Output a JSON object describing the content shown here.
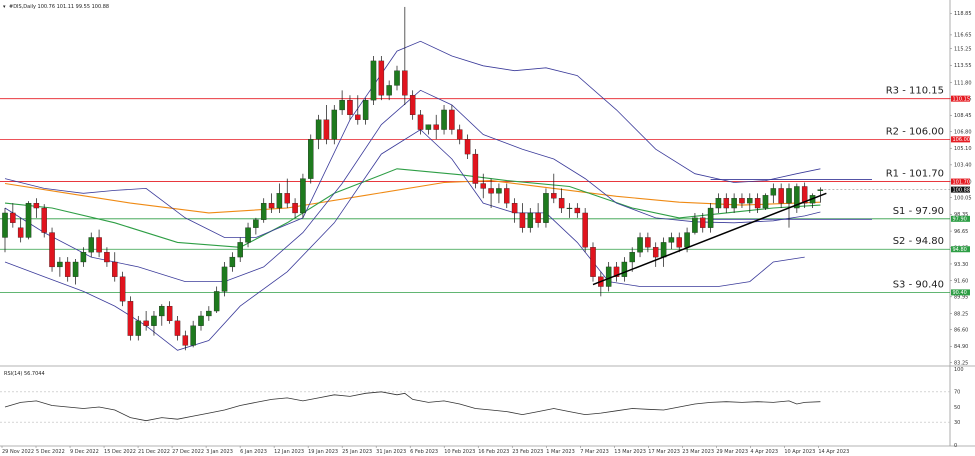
{
  "header": {
    "symbol_line": "#DIS,Daily  100.76 101.11 99.55 100.88",
    "rsi_line": "RSI(14) 56.7044"
  },
  "colors": {
    "bull": "#1e7a1e",
    "bear": "#e0141e",
    "bands": "#3b3b9a",
    "ma_fast": "#2e9e45",
    "ma_slow": "#ef8a14",
    "level": "#e51c23",
    "support_line": "#2e9e45",
    "trend": "#000000",
    "rsi": "#333333"
  },
  "chart_data": {
    "type": "candlestick",
    "price_axis": {
      "range": [
        83.0,
        119.8
      ],
      "ticks": [
        "118.85",
        "116.65",
        "115.25",
        "113.55",
        "111.80",
        "110.15",
        "108.45",
        "106.80",
        "105.10",
        "103.40",
        "101.70",
        "100.05",
        "98.35",
        "96.65",
        "94.95",
        "93.30",
        "91.60",
        "89.95",
        "88.25",
        "86.60",
        "84.90",
        "83.25"
      ]
    },
    "x_axis": {
      "labels": [
        "29 Nov 2022",
        "5 Dec 2022",
        "9 Dec 2022",
        "15 Dec 2022",
        "21 Dec 2022",
        "27 Dec 2022",
        "3 Jan 2023",
        "6 Jan 2023",
        "12 Jan 2023",
        "19 Jan 2023",
        "25 Jan 2023",
        "31 Jan 2023",
        "6 Feb 2023",
        "10 Feb 2023",
        "16 Feb 2023",
        "23 Feb 2023",
        "1 Mar 2023",
        "7 Mar 2023",
        "13 Mar 2023",
        "17 Mar 2023",
        "23 Mar 2023",
        "29 Mar 2023",
        "4 Apr 2023",
        "10 Apr 2023",
        "14 Apr 2023"
      ]
    },
    "levels": [
      {
        "label": "R3 - 110.15",
        "value": 110.15,
        "tag": "110.15"
      },
      {
        "label": "R2 - 106.00",
        "value": 106.0,
        "tag": "106.00"
      },
      {
        "label": "R1 - 101.70",
        "value": 101.7,
        "tag": "101.70"
      },
      {
        "label": "S1 - 97.90",
        "value": 97.9,
        "tag": "97.90"
      },
      {
        "label": "S2 - 94.80",
        "value": 94.8,
        "tag": "94.80"
      },
      {
        "label": "S3 - 90.40",
        "value": 90.4,
        "tag": "90.40"
      }
    ],
    "last_price": {
      "value": 100.88,
      "tag": "100.88"
    },
    "candles": [
      [
        96.0,
        99.0,
        94.5,
        98.5
      ],
      [
        98.5,
        99.5,
        97.0,
        97.5
      ],
      [
        97.0,
        98.0,
        95.5,
        96.0
      ],
      [
        96.0,
        99.7,
        95.8,
        99.5
      ],
      [
        99.5,
        100.0,
        98.0,
        99.0
      ],
      [
        99.0,
        99.4,
        96.0,
        96.5
      ],
      [
        96.5,
        97.0,
        92.5,
        93.0
      ],
      [
        93.0,
        94.0,
        92.0,
        93.5
      ],
      [
        93.5,
        94.0,
        91.5,
        92.0
      ],
      [
        92.0,
        93.8,
        91.2,
        93.5
      ],
      [
        93.5,
        95.0,
        93.0,
        94.5
      ],
      [
        94.5,
        96.5,
        94.0,
        96.0
      ],
      [
        96.0,
        96.8,
        94.0,
        94.5
      ],
      [
        94.5,
        95.0,
        93.0,
        93.5
      ],
      [
        93.5,
        94.5,
        91.5,
        92.0
      ],
      [
        92.0,
        92.5,
        89.0,
        89.5
      ],
      [
        89.5,
        90.0,
        85.5,
        86.0
      ],
      [
        86.0,
        88.0,
        85.5,
        87.5
      ],
      [
        87.5,
        88.5,
        86.5,
        87.0
      ],
      [
        87.0,
        88.5,
        86.0,
        88.0
      ],
      [
        88.0,
        89.2,
        87.0,
        89.0
      ],
      [
        89.0,
        89.5,
        87.2,
        87.5
      ],
      [
        87.5,
        88.0,
        85.5,
        86.0
      ],
      [
        86.0,
        86.5,
        84.5,
        85.0
      ],
      [
        85.0,
        87.5,
        84.8,
        87.0
      ],
      [
        87.0,
        88.5,
        86.5,
        88.0
      ],
      [
        88.0,
        89.0,
        87.5,
        88.5
      ],
      [
        88.5,
        91.0,
        88.3,
        90.5
      ],
      [
        90.5,
        93.5,
        90.0,
        93.0
      ],
      [
        93.0,
        94.5,
        92.5,
        94.0
      ],
      [
        94.0,
        96.0,
        93.5,
        95.5
      ],
      [
        95.5,
        97.5,
        95.0,
        97.0
      ],
      [
        97.0,
        98.0,
        96.3,
        97.8
      ],
      [
        97.8,
        100.0,
        97.5,
        99.5
      ],
      [
        99.5,
        100.5,
        98.5,
        99.0
      ],
      [
        99.0,
        101.5,
        98.5,
        100.5
      ],
      [
        100.5,
        102.0,
        99.0,
        99.5
      ],
      [
        99.5,
        100.0,
        98.0,
        98.5
      ],
      [
        98.5,
        102.5,
        98.0,
        102.0
      ],
      [
        102.0,
        106.5,
        101.5,
        106.0
      ],
      [
        106.0,
        108.5,
        105.0,
        108.0
      ],
      [
        108.0,
        109.5,
        105.5,
        106.0
      ],
      [
        106.0,
        109.5,
        105.5,
        109.0
      ],
      [
        109.0,
        111.0,
        108.5,
        110.0
      ],
      [
        110.0,
        110.5,
        108.0,
        108.5
      ],
      [
        108.5,
        110.5,
        107.5,
        108.0
      ],
      [
        108.0,
        110.2,
        107.5,
        110.0
      ],
      [
        110.0,
        114.5,
        109.5,
        114.0
      ],
      [
        114.0,
        114.5,
        110.0,
        110.5
      ],
      [
        110.5,
        112.0,
        110.0,
        111.5
      ],
      [
        111.5,
        113.5,
        111.0,
        113.0
      ],
      [
        113.0,
        119.5,
        109.5,
        110.5
      ],
      [
        110.5,
        111.0,
        108.0,
        108.5
      ],
      [
        108.5,
        109.0,
        106.5,
        107.0
      ],
      [
        107.0,
        107.5,
        106.5,
        107.5
      ],
      [
        107.5,
        108.5,
        106.0,
        107.0
      ],
      [
        107.0,
        109.5,
        106.5,
        109.0
      ],
      [
        109.0,
        109.5,
        106.5,
        107.0
      ],
      [
        107.0,
        107.5,
        105.5,
        106.0
      ],
      [
        106.0,
        106.5,
        104.0,
        104.5
      ],
      [
        104.5,
        105.0,
        101.0,
        101.5
      ],
      [
        101.5,
        102.5,
        100.0,
        101.0
      ],
      [
        101.0,
        102.0,
        99.0,
        100.5
      ],
      [
        100.5,
        101.5,
        99.5,
        101.0
      ],
      [
        101.0,
        101.5,
        99.0,
        99.5
      ],
      [
        99.5,
        100.0,
        97.5,
        98.5
      ],
      [
        98.5,
        99.5,
        96.5,
        97.0
      ],
      [
        97.0,
        99.0,
        96.5,
        98.5
      ],
      [
        98.5,
        99.5,
        97.0,
        97.5
      ],
      [
        97.5,
        101.0,
        97.0,
        100.5
      ],
      [
        100.5,
        102.5,
        99.5,
        100.0
      ],
      [
        100.0,
        101.0,
        98.5,
        99.0
      ],
      [
        99.0,
        99.5,
        98.0,
        99.0
      ],
      [
        99.0,
        99.5,
        98.0,
        98.5
      ],
      [
        98.5,
        99.0,
        94.5,
        95.0
      ],
      [
        95.0,
        95.5,
        91.5,
        92.0
      ],
      [
        92.0,
        92.5,
        90.0,
        91.0
      ],
      [
        91.0,
        93.5,
        90.5,
        93.0
      ],
      [
        93.0,
        93.5,
        91.5,
        92.0
      ],
      [
        92.0,
        94.0,
        91.5,
        93.5
      ],
      [
        93.5,
        95.0,
        92.5,
        94.5
      ],
      [
        94.5,
        96.5,
        94.0,
        96.0
      ],
      [
        96.0,
        96.5,
        94.5,
        95.0
      ],
      [
        95.0,
        95.5,
        93.0,
        94.0
      ],
      [
        94.0,
        96.0,
        93.0,
        95.5
      ],
      [
        95.5,
        96.5,
        94.8,
        96.0
      ],
      [
        96.0,
        96.5,
        94.5,
        95.0
      ],
      [
        95.0,
        97.0,
        94.5,
        96.5
      ],
      [
        96.5,
        98.5,
        96.3,
        98.0
      ],
      [
        98.0,
        98.5,
        96.5,
        97.0
      ],
      [
        97.0,
        99.5,
        96.5,
        99.0
      ],
      [
        99.0,
        100.5,
        98.5,
        100.0
      ],
      [
        100.0,
        100.5,
        98.5,
        99.0
      ],
      [
        99.0,
        100.5,
        98.5,
        100.0
      ],
      [
        100.0,
        100.5,
        99.0,
        99.5
      ],
      [
        99.5,
        100.5,
        98.5,
        100.0
      ],
      [
        100.0,
        100.5,
        98.5,
        99.0
      ],
      [
        99.0,
        100.5,
        98.8,
        100.3
      ],
      [
        100.3,
        101.5,
        99.5,
        101.0
      ],
      [
        101.0,
        101.5,
        99.0,
        99.5
      ],
      [
        99.5,
        101.5,
        97.0,
        101.0
      ],
      [
        99.0,
        101.5,
        98.5,
        101.2
      ],
      [
        101.2,
        101.6,
        99.0,
        99.5
      ],
      [
        99.5,
        100.5,
        99.0,
        100.3
      ],
      [
        100.76,
        101.11,
        99.55,
        100.88
      ]
    ],
    "moving_averages": [
      {
        "name": "ma_slow",
        "color": "#ef8a14",
        "points": [
          [
            0,
            101.5
          ],
          [
            8,
            100.5
          ],
          [
            16,
            99.5
          ],
          [
            26,
            98.5
          ],
          [
            36,
            99.0
          ],
          [
            46,
            100.3
          ],
          [
            56,
            101.6
          ],
          [
            62,
            101.8
          ],
          [
            70,
            101.0
          ],
          [
            78,
            100.2
          ],
          [
            86,
            99.6
          ],
          [
            94,
            99.3
          ],
          [
            104,
            99.6
          ]
        ]
      },
      {
        "name": "ma_fast",
        "color": "#2e9e45",
        "points": [
          [
            0,
            99.5
          ],
          [
            6,
            99.0
          ],
          [
            14,
            97.5
          ],
          [
            22,
            95.5
          ],
          [
            30,
            95.0
          ],
          [
            36,
            97.5
          ],
          [
            42,
            100.5
          ],
          [
            50,
            103.0
          ],
          [
            58,
            102.4
          ],
          [
            64,
            101.8
          ],
          [
            72,
            101.2
          ],
          [
            80,
            99.0
          ],
          [
            86,
            98.0
          ],
          [
            92,
            98.5
          ],
          [
            98,
            99.0
          ],
          [
            104,
            99.3
          ]
        ]
      },
      {
        "name": "bb_upper",
        "color": "#3b3b9a",
        "points": [
          [
            0,
            102.0
          ],
          [
            5,
            101.0
          ],
          [
            10,
            100.5
          ],
          [
            14,
            100.8
          ],
          [
            18,
            101.0
          ],
          [
            23,
            98.0
          ],
          [
            28,
            96.0
          ],
          [
            32,
            96.0
          ],
          [
            38,
            98.0
          ],
          [
            44,
            108.0
          ],
          [
            50,
            115.0
          ],
          [
            53,
            116.0
          ],
          [
            57,
            114.5
          ],
          [
            61,
            113.5
          ],
          [
            65,
            113.0
          ],
          [
            69,
            113.3
          ],
          [
            73,
            112.5
          ],
          [
            78,
            109.0
          ],
          [
            83,
            105.0
          ],
          [
            88,
            102.5
          ],
          [
            93,
            101.6
          ],
          [
            97,
            101.8
          ],
          [
            101,
            102.5
          ],
          [
            104,
            103.0
          ]
        ]
      },
      {
        "name": "bb_lower",
        "color": "#3b3b9a",
        "points": [
          [
            0,
            93.5
          ],
          [
            5,
            92.0
          ],
          [
            10,
            90.5
          ],
          [
            14,
            89.0
          ],
          [
            18,
            87.0
          ],
          [
            22,
            84.5
          ],
          [
            26,
            85.5
          ],
          [
            30,
            89.0
          ],
          [
            36,
            92.5
          ],
          [
            42,
            97.5
          ],
          [
            48,
            104.5
          ],
          [
            53,
            107.0
          ],
          [
            57,
            104.0
          ],
          [
            61,
            99.5
          ],
          [
            65,
            98.5
          ],
          [
            69,
            98.5
          ],
          [
            73,
            95.5
          ],
          [
            77,
            91.5
          ],
          [
            81,
            91.0
          ],
          [
            86,
            91.0
          ],
          [
            91,
            91.0
          ],
          [
            95,
            91.5
          ],
          [
            98,
            93.5
          ],
          [
            102,
            94.0
          ]
        ]
      },
      {
        "name": "bb_mid",
        "color": "#3b3b9a",
        "points": [
          [
            0,
            99.0
          ],
          [
            5,
            96.5
          ],
          [
            11,
            94.0
          ],
          [
            17,
            93.0
          ],
          [
            23,
            91.5
          ],
          [
            28,
            91.5
          ],
          [
            33,
            93.0
          ],
          [
            38,
            96.5
          ],
          [
            43,
            101.5
          ],
          [
            48,
            107.5
          ],
          [
            53,
            111.0
          ],
          [
            57,
            109.5
          ],
          [
            61,
            106.5
          ],
          [
            66,
            105.0
          ],
          [
            70,
            104.0
          ],
          [
            74,
            102.0
          ],
          [
            78,
            99.5
          ],
          [
            83,
            98.0
          ],
          [
            88,
            97.6
          ],
          [
            93,
            97.5
          ],
          [
            98,
            97.7
          ],
          [
            102,
            98.2
          ],
          [
            104,
            98.6
          ]
        ]
      }
    ],
    "trendlines": [
      {
        "from": [
          75,
          91.2
        ],
        "to": [
          104,
          100.5
        ],
        "color": "#000000"
      }
    ],
    "rsi": {
      "ticks": [
        "100",
        "70",
        "50",
        "30",
        "0"
      ],
      "dashed_levels": [
        70,
        30
      ],
      "points": [
        [
          0,
          50
        ],
        [
          2,
          56
        ],
        [
          4,
          58
        ],
        [
          6,
          52
        ],
        [
          8,
          50
        ],
        [
          10,
          48
        ],
        [
          12,
          50
        ],
        [
          14,
          46
        ],
        [
          16,
          36
        ],
        [
          18,
          32
        ],
        [
          20,
          36
        ],
        [
          22,
          34
        ],
        [
          24,
          38
        ],
        [
          26,
          42
        ],
        [
          28,
          46
        ],
        [
          30,
          52
        ],
        [
          32,
          56
        ],
        [
          34,
          60
        ],
        [
          36,
          62
        ],
        [
          38,
          58
        ],
        [
          40,
          62
        ],
        [
          42,
          66
        ],
        [
          44,
          64
        ],
        [
          46,
          68
        ],
        [
          48,
          70
        ],
        [
          50,
          66
        ],
        [
          51,
          68
        ],
        [
          52,
          60
        ],
        [
          54,
          56
        ],
        [
          56,
          58
        ],
        [
          58,
          54
        ],
        [
          60,
          48
        ],
        [
          62,
          46
        ],
        [
          64,
          44
        ],
        [
          66,
          40
        ],
        [
          68,
          44
        ],
        [
          70,
          48
        ],
        [
          72,
          44
        ],
        [
          74,
          40
        ],
        [
          76,
          42
        ],
        [
          78,
          45
        ],
        [
          80,
          48
        ],
        [
          82,
          47
        ],
        [
          84,
          46
        ],
        [
          86,
          50
        ],
        [
          88,
          54
        ],
        [
          90,
          56
        ],
        [
          92,
          57
        ],
        [
          94,
          56
        ],
        [
          96,
          57
        ],
        [
          98,
          56
        ],
        [
          100,
          58
        ],
        [
          101,
          54
        ],
        [
          102,
          56
        ],
        [
          104,
          57
        ]
      ]
    }
  }
}
